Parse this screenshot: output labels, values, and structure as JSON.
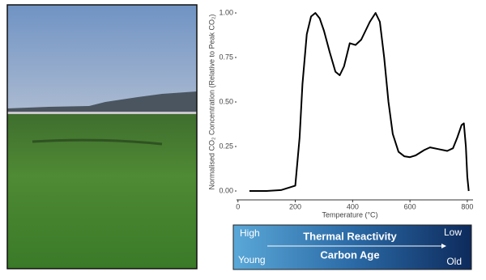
{
  "chart_data": {
    "type": "line",
    "xlabel": "Temperature (°C)",
    "ylabel": "Normalised CO₂ Concentration (Relative to Peak CO₂)",
    "x": [
      40,
      100,
      150,
      200,
      215,
      225,
      240,
      255,
      270,
      285,
      300,
      320,
      340,
      355,
      370,
      390,
      410,
      430,
      460,
      480,
      495,
      510,
      525,
      540,
      560,
      580,
      600,
      620,
      650,
      670,
      700,
      730,
      750,
      765,
      780,
      788,
      795,
      800,
      805
    ],
    "values": [
      0.0,
      0.0,
      0.005,
      0.03,
      0.3,
      0.6,
      0.88,
      0.98,
      1.0,
      0.97,
      0.9,
      0.78,
      0.67,
      0.65,
      0.7,
      0.83,
      0.82,
      0.85,
      0.95,
      1.0,
      0.95,
      0.75,
      0.5,
      0.32,
      0.22,
      0.195,
      0.19,
      0.2,
      0.23,
      0.245,
      0.235,
      0.225,
      0.24,
      0.3,
      0.37,
      0.38,
      0.25,
      0.08,
      0.0
    ],
    "color": "#000000",
    "xlim": [
      -5,
      820
    ],
    "ylim": [
      -0.05,
      1.05
    ],
    "xticks": [
      0,
      200,
      400,
      600,
      800
    ],
    "yticks": [
      {
        "value": 0,
        "label": "0.00"
      },
      {
        "value": 0.25,
        "label": "0.25"
      },
      {
        "value": 0.5,
        "label": "0.50"
      },
      {
        "value": 0.75,
        "label": "0.75"
      },
      {
        "value": 1,
        "label": "1.00"
      }
    ]
  },
  "scale": {
    "top_left": "High",
    "top_center": "Thermal Reactivity",
    "top_right": "Low",
    "bottom_left": "Young",
    "bottom_center": "Carbon Age",
    "bottom_right": "Old"
  }
}
